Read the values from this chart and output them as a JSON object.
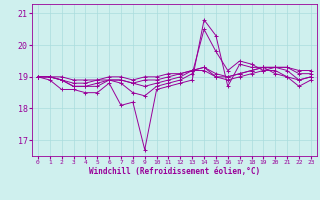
{
  "xlabel": "Windchill (Refroidissement éolien,°C)",
  "bg_color": "#cff0ee",
  "grid_color": "#aadddd",
  "line_color": "#990099",
  "xlim": [
    -0.5,
    23.5
  ],
  "ylim": [
    16.5,
    21.3
  ],
  "yticks": [
    17,
    18,
    19,
    20,
    21
  ],
  "xticks": [
    0,
    1,
    2,
    3,
    4,
    5,
    6,
    7,
    8,
    9,
    10,
    11,
    12,
    13,
    14,
    15,
    16,
    17,
    18,
    19,
    20,
    21,
    22,
    23
  ],
  "series": [
    [
      19.0,
      18.9,
      18.6,
      18.6,
      18.5,
      18.5,
      18.8,
      18.1,
      18.2,
      16.7,
      18.6,
      18.7,
      18.8,
      18.9,
      20.8,
      20.3,
      18.7,
      19.4,
      19.3,
      19.3,
      19.1,
      19.0,
      18.7,
      18.9
    ],
    [
      19.0,
      19.0,
      18.9,
      18.7,
      18.7,
      18.7,
      18.9,
      18.8,
      18.5,
      18.4,
      18.7,
      18.8,
      18.9,
      19.1,
      20.5,
      19.8,
      19.2,
      19.5,
      19.4,
      19.2,
      19.2,
      19.0,
      18.9,
      19.0
    ],
    [
      19.0,
      19.0,
      18.9,
      18.7,
      18.7,
      18.8,
      18.9,
      18.9,
      18.8,
      18.7,
      18.8,
      18.9,
      19.0,
      19.2,
      19.3,
      19.0,
      18.9,
      19.0,
      19.1,
      19.2,
      19.3,
      19.2,
      18.9,
      19.0
    ],
    [
      19.0,
      19.0,
      18.9,
      18.8,
      18.8,
      18.9,
      18.9,
      18.9,
      18.8,
      18.9,
      18.9,
      19.0,
      19.1,
      19.2,
      19.3,
      19.1,
      19.0,
      19.1,
      19.2,
      19.3,
      19.3,
      19.3,
      19.1,
      19.1
    ],
    [
      19.0,
      19.0,
      19.0,
      18.9,
      18.9,
      18.9,
      19.0,
      19.0,
      18.9,
      19.0,
      19.0,
      19.1,
      19.1,
      19.2,
      19.2,
      19.0,
      19.0,
      19.1,
      19.2,
      19.3,
      19.3,
      19.3,
      19.2,
      19.2
    ]
  ]
}
